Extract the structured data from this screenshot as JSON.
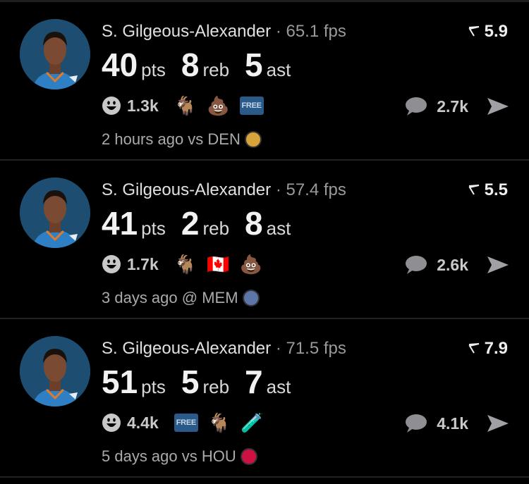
{
  "feed": [
    {
      "player": "S. Gilgeous-Alexander",
      "fps": "· 65.1 fps",
      "rating": "5.9",
      "pts": "40",
      "reb": "8",
      "ast": "5",
      "pts_label": "pts",
      "reb_label": "reb",
      "ast_label": "ast",
      "smile_count": "1.3k",
      "reactions": [
        "goat",
        "poop",
        "free"
      ],
      "comments": "2.7k",
      "time": "2 hours ago vs DEN",
      "team_logo": "nuggets-logo",
      "team_color": "#d6a43a"
    },
    {
      "player": "S. Gilgeous-Alexander",
      "fps": "· 57.4 fps",
      "rating": "5.5",
      "pts": "41",
      "reb": "2",
      "ast": "8",
      "pts_label": "pts",
      "reb_label": "reb",
      "ast_label": "ast",
      "smile_count": "1.7k",
      "reactions": [
        "goat",
        "canada-flag",
        "poop"
      ],
      "comments": "2.6k",
      "time": "3 days ago @ MEM",
      "team_logo": "grizzlies-logo",
      "team_color": "#5d76a9"
    },
    {
      "player": "S. Gilgeous-Alexander",
      "fps": "· 71.5 fps",
      "rating": "7.9",
      "pts": "51",
      "reb": "5",
      "ast": "7",
      "pts_label": "pts",
      "reb_label": "reb",
      "ast_label": "ast",
      "smile_count": "4.4k",
      "reactions": [
        "free",
        "goat",
        "test-tube"
      ],
      "comments": "4.1k",
      "time": "5 days ago vs HOU",
      "team_logo": "rockets-logo",
      "team_color": "#ce1141"
    }
  ],
  "free_label": "FREE",
  "colors": {
    "background": "#000000",
    "avatar_bg": "#1d4e72",
    "free_badge": "#2a5a8a"
  }
}
